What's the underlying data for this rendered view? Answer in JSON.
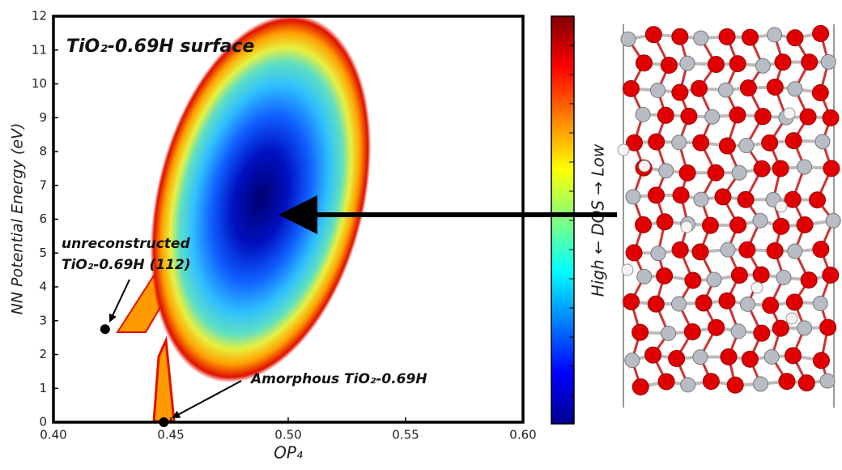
{
  "chart_data": {
    "type": "scatter",
    "title": "TiO₂-0.69H surface",
    "x_label": "OP₄",
    "y_label": "NN Potential Energy (eV)",
    "xlim": [
      0.4,
      0.6
    ],
    "ylim": [
      0,
      12
    ],
    "xticks": [
      {
        "value": 0.4,
        "label": "0.40"
      },
      {
        "value": 0.45,
        "label": "0.45"
      },
      {
        "value": 0.5,
        "label": "0.50"
      },
      {
        "value": 0.55,
        "label": "0.55"
      },
      {
        "value": 0.6,
        "label": "0.60"
      }
    ],
    "yticks": [
      0,
      1,
      2,
      3,
      4,
      5,
      6,
      7,
      8,
      9,
      10,
      11,
      12
    ],
    "x": [
      0.422,
      0.447
    ],
    "values": [
      2.75,
      0.0
    ],
    "color": "#000000",
    "annotations": [
      {
        "lines": [
          "unreconstructed",
          "TiO₂-0.69H (112)"
        ]
      },
      {
        "lines": [
          "Amorphous TiO₂-0.69H"
        ]
      }
    ],
    "colorbar": {
      "label": "High ← DOS → Low",
      "colors": [
        "#00008f",
        "#0000ff",
        "#0080ff",
        "#00ffff",
        "#80ff80",
        "#ffff00",
        "#ff8000",
        "#ff0000",
        "#800000"
      ]
    }
  }
}
